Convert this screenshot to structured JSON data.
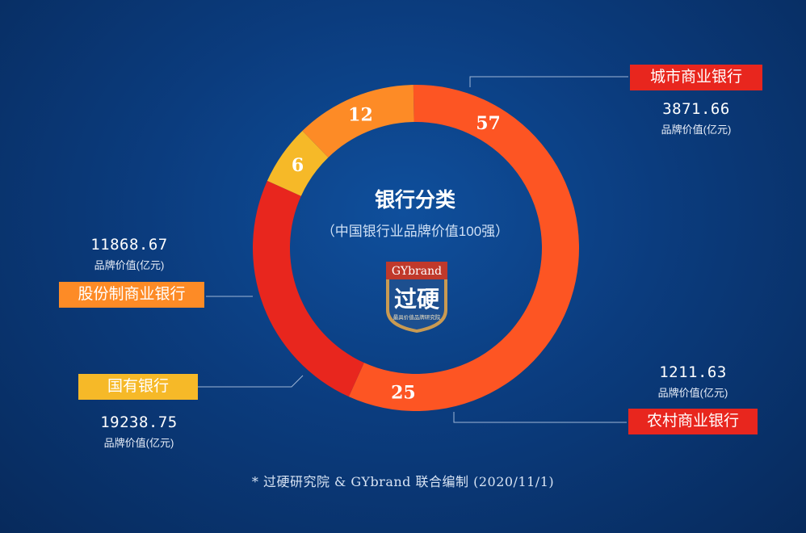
{
  "chart_data": {
    "type": "pie",
    "donut": true,
    "title": "银行分类",
    "subtitle": "（中国银行业品牌价值100强）",
    "slices": [
      {
        "label": "城市商业银行",
        "value": 57,
        "brand_value": "3871.66",
        "unit": "品牌价值(亿元)",
        "color": "#fd5523"
      },
      {
        "label": "农村商业银行",
        "value": 25,
        "brand_value": "1211.63",
        "unit": "品牌价值(亿元)",
        "color": "#e8261e"
      },
      {
        "label": "国有银行",
        "value": 6,
        "brand_value": "19238.75",
        "unit": "品牌价值(亿元)",
        "color": "#f6b928"
      },
      {
        "label": "股份制商业银行",
        "value": 12,
        "brand_value": "11868.67",
        "unit": "品牌价值(亿元)",
        "color": "#fd8b26"
      }
    ]
  },
  "logo": {
    "brand": "GYbrand",
    "name": "过硬",
    "tagline": "最具价值品牌研究院"
  },
  "footnote": "* 过硬研究院 & GYbrand 联合编制 (2020/11/1)"
}
